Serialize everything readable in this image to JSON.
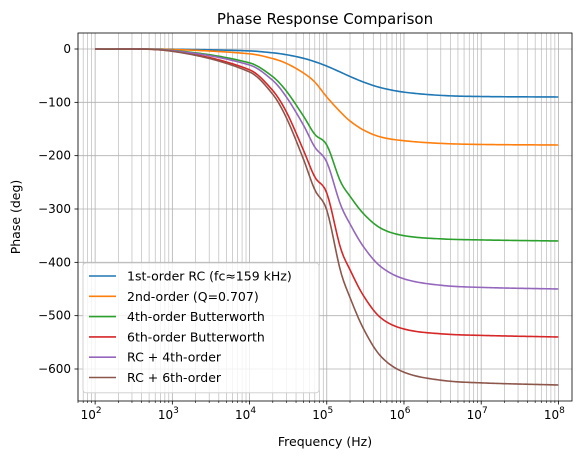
{
  "chart_data": {
    "type": "line",
    "title": "Phase Response Comparison",
    "xlabel": "Frequency (Hz)",
    "ylabel": "Phase (deg)",
    "x_scale": "log",
    "xlim": [
      60,
      150000000
    ],
    "ylim": [
      -660,
      30
    ],
    "x_ticks": [
      {
        "value": 100,
        "base": "10",
        "exp": "2"
      },
      {
        "value": 1000,
        "base": "10",
        "exp": "3"
      },
      {
        "value": 10000,
        "base": "10",
        "exp": "4"
      },
      {
        "value": 100000,
        "base": "10",
        "exp": "5"
      },
      {
        "value": 1000000,
        "base": "10",
        "exp": "6"
      },
      {
        "value": 10000000,
        "base": "10",
        "exp": "7"
      },
      {
        "value": 100000000,
        "base": "10",
        "exp": "8"
      }
    ],
    "y_ticks": [
      {
        "value": 0,
        "label": "0"
      },
      {
        "value": -100,
        "label": "−100"
      },
      {
        "value": -200,
        "label": "−200"
      },
      {
        "value": -300,
        "label": "−300"
      },
      {
        "value": -400,
        "label": "−400"
      },
      {
        "value": -500,
        "label": "−500"
      },
      {
        "value": -600,
        "label": "−600"
      }
    ],
    "grid": true,
    "minor_grid": true,
    "legend_position": "lower-left",
    "x": [
      100,
      1000,
      10000,
      20000,
      30000,
      50000,
      70000,
      100000,
      150000,
      200000,
      300000,
      500000,
      1000000,
      3000000,
      10000000,
      100000000
    ],
    "series": [
      {
        "name": "1st-order RC (fc≈159 kHz)",
        "color": "#1f77b4",
        "values": [
          0,
          -0.4,
          -3.6,
          -7.2,
          -10.7,
          -17.4,
          -23.8,
          -32.1,
          -43.3,
          -51.5,
          -62.1,
          -72.5,
          -80.9,
          -87.0,
          -89.1,
          -90
        ]
      },
      {
        "name": "2nd-order (Q=0.707)",
        "color": "#ff7f0e",
        "values": [
          0,
          -0.9,
          -9,
          -18,
          -27,
          -45,
          -62,
          -90,
          -118,
          -135,
          -152,
          -165,
          -172,
          -177,
          -179,
          -180
        ]
      },
      {
        "name": "4th-order Butterworth",
        "color": "#2ca02c",
        "values": [
          0,
          -2.6,
          -26,
          -52,
          -79,
          -126,
          -160,
          -180,
          -248,
          -276,
          -309,
          -336,
          -350,
          -356,
          -358,
          -360
        ]
      },
      {
        "name": "6th-order Butterworth",
        "color": "#d62728",
        "values": [
          0,
          -3.9,
          -39,
          -78,
          -118,
          -190,
          -240,
          -270,
          -372,
          -414,
          -463,
          -504,
          -525,
          -534,
          -537,
          -540
        ]
      },
      {
        "name": "RC + 4th-order",
        "color": "#9467bd",
        "values": [
          0,
          -3,
          -30,
          -59,
          -90,
          -143,
          -184,
          -212,
          -291,
          -328,
          -371,
          -408,
          -431,
          -443,
          -447,
          -450
        ]
      },
      {
        "name": "RC + 6th-order",
        "color": "#8c564b",
        "values": [
          0,
          -4.3,
          -43,
          -85,
          -129,
          -207,
          -264,
          -302,
          -415,
          -466,
          -525,
          -576,
          -606,
          -621,
          -626,
          -630
        ]
      }
    ]
  }
}
